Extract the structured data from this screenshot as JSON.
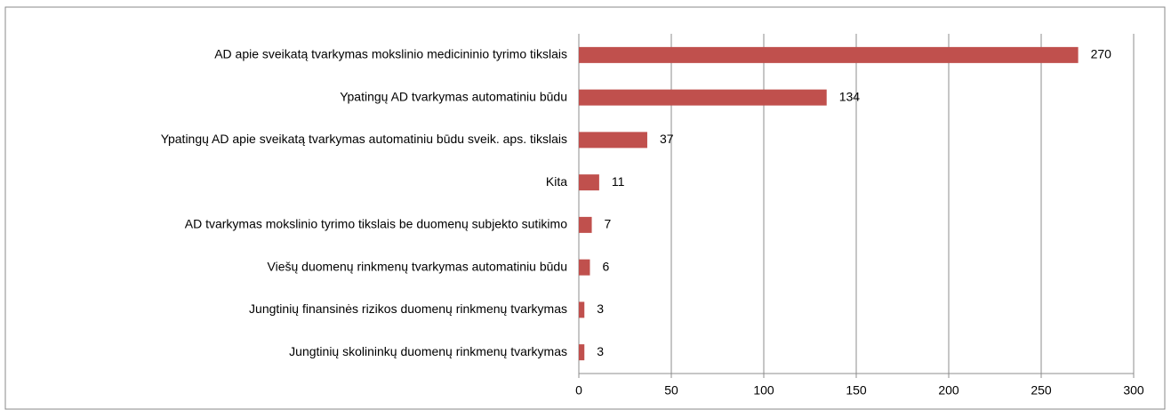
{
  "chart_data": {
    "type": "bar",
    "orientation": "horizontal",
    "categories": [
      "AD apie sveikatą tvarkymas mokslinio medicininio tyrimo tikslais",
      "Ypatingų AD tvarkymas automatiniu būdu",
      "Ypatingų AD apie sveikatą tvarkymas automatiniu būdu sveik. aps. tikslais",
      "Kita",
      "AD tvarkymas mokslinio tyrimo tikslais be duomenų subjekto  sutikimo",
      "Viešų duomenų rinkmenų tvarkymas automatiniu būdu",
      "Jungtinių finansinės rizikos duomenų rinkmenų tvarkymas",
      "Jungtinių skolininkų duomenų rinkmenų tvarkymas"
    ],
    "values": [
      270,
      134,
      37,
      11,
      7,
      6,
      3,
      3
    ],
    "color": "#c0504d",
    "xlim": [
      0,
      300
    ],
    "xticks": [
      0,
      50,
      100,
      150,
      200,
      250,
      300
    ],
    "grid": true
  }
}
